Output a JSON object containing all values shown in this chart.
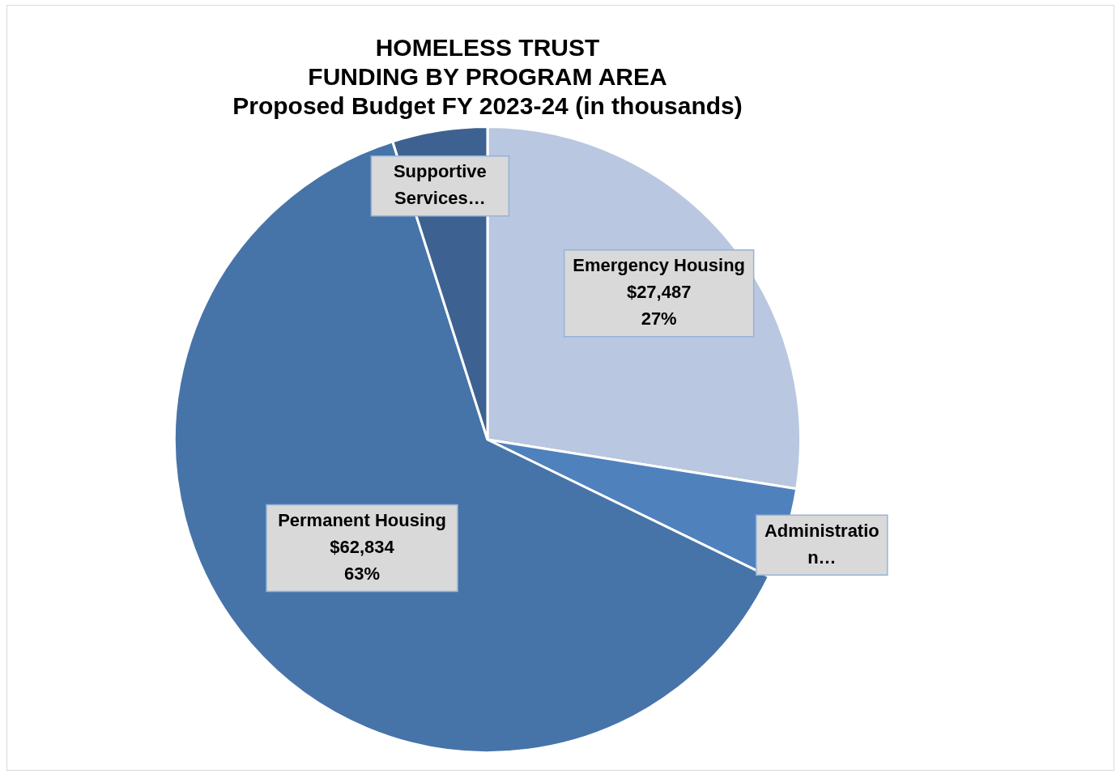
{
  "chart_data": {
    "type": "pie",
    "title": "HOMELESS TRUST\nFUNDING BY PROGRAM AREA",
    "subtitle": "Proposed Budget FY 2023-24 (in thousands)",
    "categories": [
      "Emergency Housing",
      "Administration…",
      "Permanent Housing",
      "Supportive Services…"
    ],
    "values": [
      27487,
      4700,
      62834,
      4900
    ],
    "colors": [
      "#b9c7e0",
      "#4f81bd",
      "#4674a8",
      "#3d6190"
    ],
    "value_labels": [
      "$27,487\n27%",
      null,
      "$62,834\n63%",
      null
    ]
  }
}
